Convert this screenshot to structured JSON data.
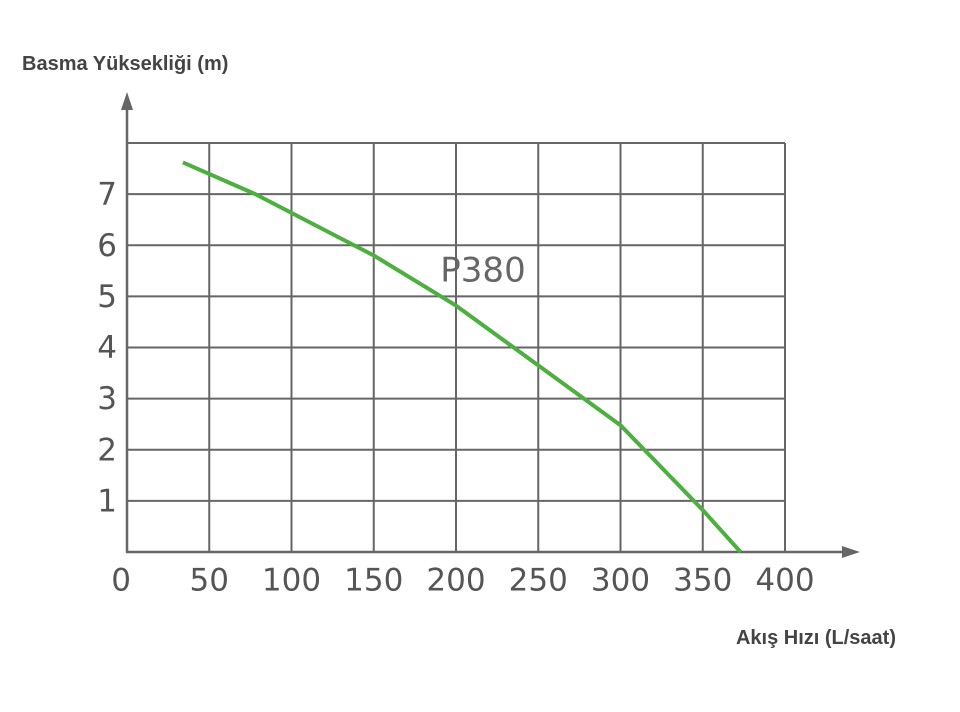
{
  "chart_data": {
    "type": "line",
    "y_label": "Basma Yüksekliği (m)",
    "x_label": "Akış Hızı (L/saat)",
    "x": [
      34,
      78,
      150,
      200,
      250,
      300,
      350,
      373
    ],
    "series": [
      {
        "name": "P380",
        "color": "#4caf3f",
        "values": [
          7.62,
          7.0,
          5.8,
          4.82,
          3.65,
          2.48,
          0.82,
          0
        ]
      }
    ],
    "xlim": [
      0,
      400
    ],
    "xticks": [
      0,
      50,
      100,
      150,
      200,
      250,
      300,
      350,
      400
    ],
    "ylim": [
      0,
      8
    ],
    "yticks": [
      1,
      2,
      3,
      4,
      5,
      6,
      7
    ],
    "grid": true
  }
}
